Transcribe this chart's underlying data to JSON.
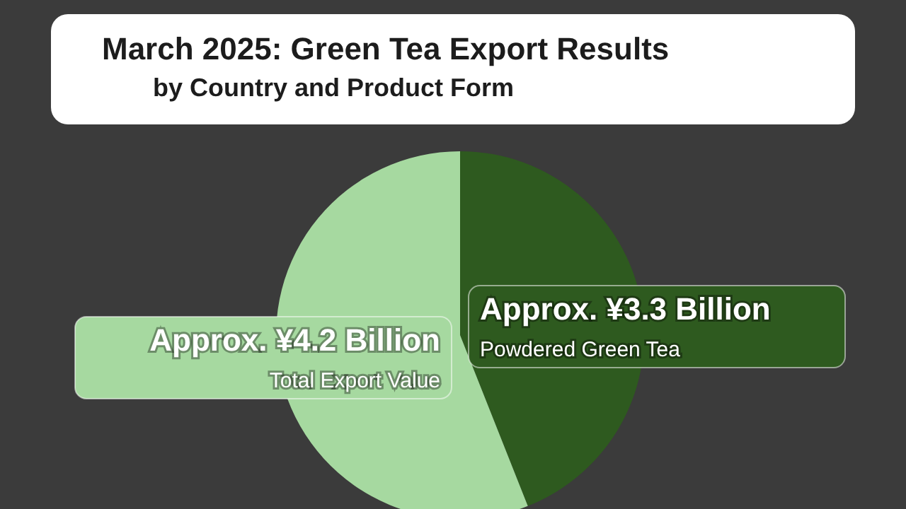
{
  "chart_data": {
    "type": "pie",
    "title": "March 2025: Green Tea Export Results",
    "subtitle": "by Country and Product Form",
    "categories": [
      "Powdered Green Tea",
      "Total Export Value"
    ],
    "values": [
      3.3,
      4.2
    ],
    "colors": [
      "#2e5a1f",
      "#a6d9a0"
    ],
    "value_labels": [
      "Approx. ¥3.3 Billion",
      "Approx. ¥4.2 Billion"
    ],
    "legend": false
  }
}
